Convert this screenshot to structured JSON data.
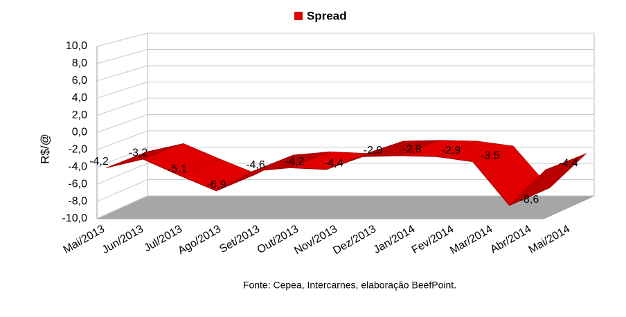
{
  "chart_data": {
    "type": "ribbon3d",
    "legend": "Spread",
    "color": "#e00000",
    "y_label": "R$/@",
    "source": "Fonte: Cepea, Intercarnes, elaboração BeefPoint.",
    "categories": [
      "Mai/2013",
      "Jun/2013",
      "Jul/2013",
      "Ago/2013",
      "Set/2013",
      "Out/2013",
      "Nov/2013",
      "Dez/2013",
      "Jan/2014",
      "Fev/2014",
      "Mar/2014",
      "Abr/2014",
      "Mai/2014"
    ],
    "values": [
      -4.2,
      -3.2,
      -5.1,
      -6.9,
      -4.6,
      -4.2,
      -4.4,
      -2.9,
      -2.8,
      -2.9,
      -3.5,
      -8.6,
      -4.4
    ],
    "value_labels": [
      "-4,2",
      "-3,2",
      "-5,1",
      "-6,9",
      "-4,6",
      "-4,2",
      "-4,4",
      "-2,9",
      "-2,8",
      "-2,9",
      "-3,5",
      "-8,6",
      "-4,4"
    ],
    "ylim": [
      -10,
      10
    ],
    "yticks": [
      {
        "value": -10,
        "label": "-10,0"
      },
      {
        "value": -8,
        "label": "-8,0"
      },
      {
        "value": -6,
        "label": "-6,0"
      },
      {
        "value": -4,
        "label": "-4,0"
      },
      {
        "value": -2,
        "label": "-2,0"
      },
      {
        "value": 0,
        "label": "0,0"
      },
      {
        "value": 2,
        "label": "2,0"
      },
      {
        "value": 4,
        "label": "4,0"
      },
      {
        "value": 6,
        "label": "6,0"
      },
      {
        "value": 8,
        "label": "8,0"
      },
      {
        "value": 10,
        "label": "10,0"
      }
    ],
    "grid": true
  }
}
